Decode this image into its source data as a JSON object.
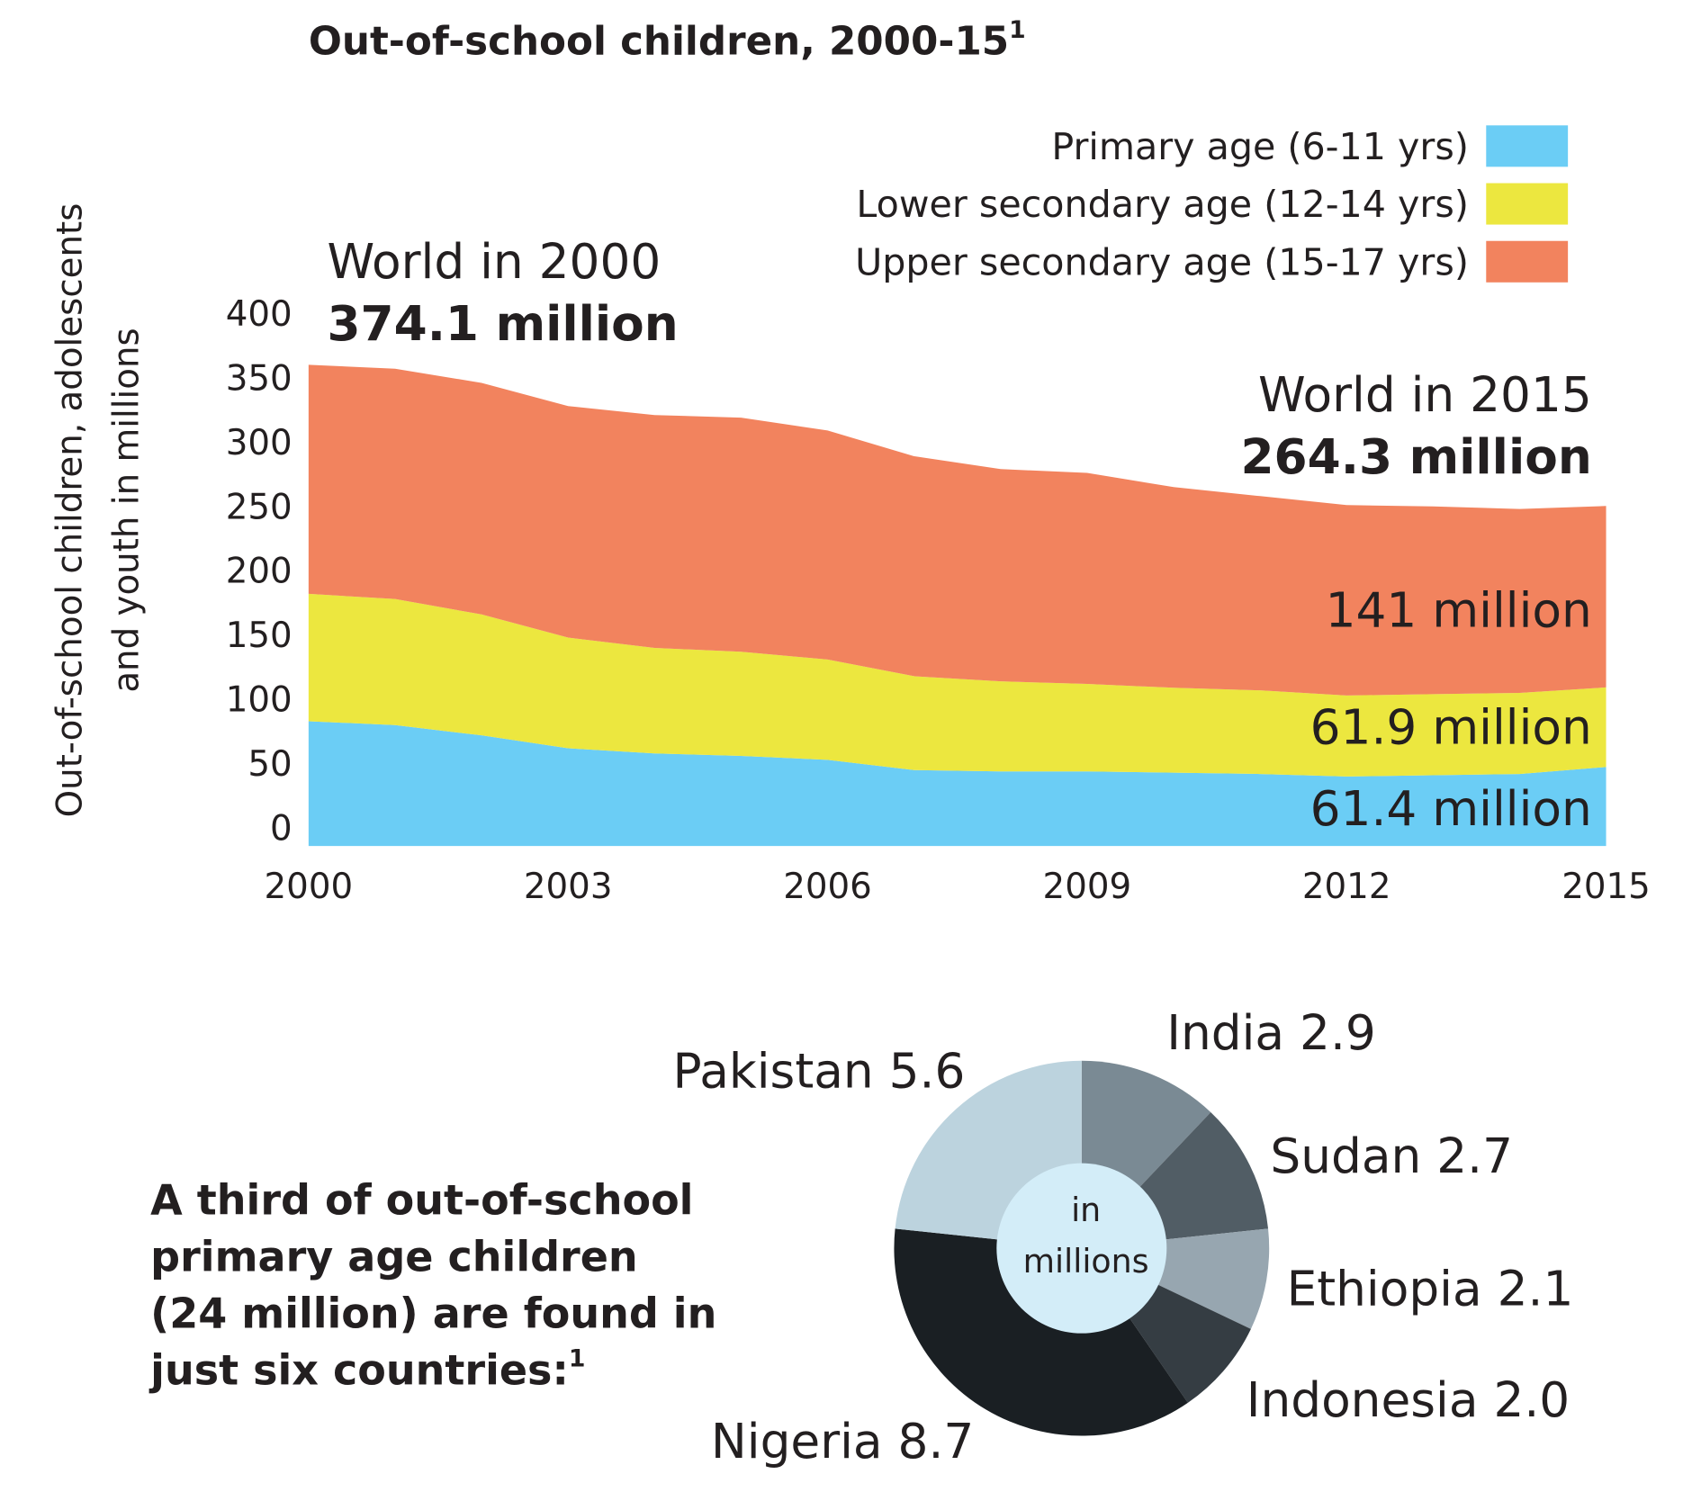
{
  "chart_data": [
    {
      "type": "stacked_area",
      "title": "Out-of-school children, 2000-15",
      "title_note": "1",
      "y_label": [
        "Out-of-school children, adolescents",
        "and youth in millions"
      ],
      "x": [
        2000,
        2001,
        2002,
        2003,
        2004,
        2005,
        2006,
        2007,
        2008,
        2009,
        2010,
        2011,
        2012,
        2013,
        2014,
        2015
      ],
      "series": [
        {
          "name": "Primary age (6-11 yrs)",
          "color": "#6bcdf5",
          "values": [
            97,
            94,
            86,
            76,
            72,
            70,
            67,
            59,
            58,
            58,
            57,
            56,
            54,
            55,
            56,
            61.4
          ]
        },
        {
          "name": "Lower secondary age (12-14 yrs)",
          "color": "#ece73f",
          "values": [
            99,
            98,
            94,
            86,
            82,
            81,
            78,
            73,
            70,
            68,
            66,
            65,
            63,
            63,
            63,
            61.9
          ]
        },
        {
          "name": "Upper secondary age (15-17 yrs)",
          "color": "#f2835e",
          "values": [
            178.1,
            179,
            180,
            180,
            181,
            182,
            178,
            171,
            165,
            164,
            156,
            151,
            148,
            146,
            143,
            141
          ]
        }
      ],
      "xlim": [
        2000,
        2015
      ],
      "xticks": [
        2000,
        2003,
        2006,
        2009,
        2012,
        2015
      ],
      "ylim": [
        0,
        400
      ],
      "yticks": [
        0,
        50,
        100,
        150,
        200,
        250,
        300,
        350,
        400
      ],
      "grid": false,
      "legend": "top-right",
      "annotations": [
        "World in 2000",
        "374.1 million",
        "World in 2015",
        "264.3 million",
        "141 million",
        "61.9 million",
        "61.4 million"
      ]
    },
    {
      "type": "pie",
      "caption": [
        "A third of out-of-school",
        "primary age children",
        "(24 million) are found in",
        "just six countries:"
      ],
      "caption_note": "1",
      "center_label": [
        "in",
        "millions"
      ],
      "categories": [
        "India",
        "Sudan",
        "Ethiopia",
        "Indonesia",
        "Nigeria",
        "Pakistan"
      ],
      "values": [
        2.9,
        2.7,
        2.1,
        2.0,
        8.7,
        5.6
      ],
      "value_labels": [
        "2.9",
        "2.7",
        "2.1",
        "2.0",
        "8.7",
        "5.6"
      ],
      "colors": [
        "#7a8a94",
        "#515d65",
        "#97a6b0",
        "#353d43",
        "#1a1f23",
        "#bcd3de"
      ],
      "center_color": "#d3edf8"
    }
  ]
}
